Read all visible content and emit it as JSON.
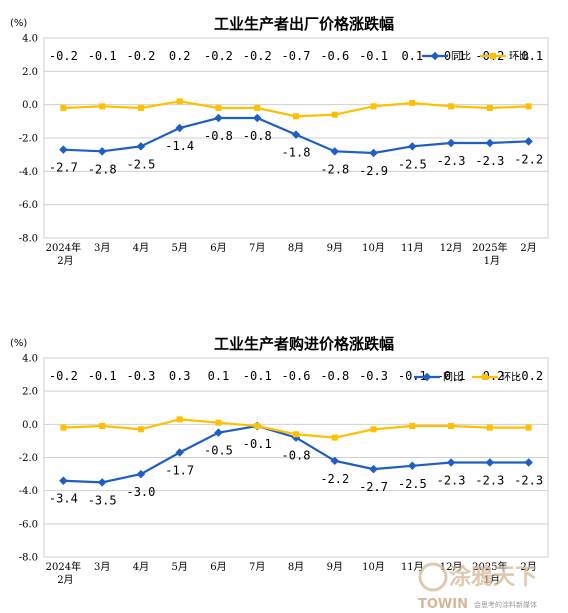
{
  "colors": {
    "yoy": "#1f5fc4",
    "mom": "#ffc000",
    "grid": "#d0d0d0"
  },
  "watermark": {
    "brand": "涂鴉天下",
    "sub": "TOWIN",
    "tag": "会思考的涂料新媒体"
  },
  "chart_data": [
    {
      "type": "line",
      "title": "工业生产者出厂价格涨跌幅",
      "ylabel": "(%)",
      "ylim": [
        -8.0,
        4.0
      ],
      "yticks": [
        "4.0",
        "2.0",
        "0.0",
        "-2.0",
        "-4.0",
        "-6.0",
        "-8.0"
      ],
      "categories": [
        [
          "2024年",
          "2月"
        ],
        [
          "3月"
        ],
        [
          "4月"
        ],
        [
          "5月"
        ],
        [
          "6月"
        ],
        [
          "7月"
        ],
        [
          "8月"
        ],
        [
          "9月"
        ],
        [
          "10月"
        ],
        [
          "11月"
        ],
        [
          "12月"
        ],
        [
          "2025年",
          "1月"
        ],
        [
          "2月"
        ]
      ],
      "legend_position": "top-right",
      "series": [
        {
          "name": "同比",
          "values": [
            -2.7,
            -2.8,
            -2.5,
            -1.4,
            -0.8,
            -0.8,
            -1.8,
            -2.8,
            -2.9,
            -2.5,
            -2.3,
            -2.3,
            -2.2
          ]
        },
        {
          "name": "环比",
          "values": [
            -0.2,
            -0.1,
            -0.2,
            0.2,
            -0.2,
            -0.2,
            -0.7,
            -0.6,
            -0.1,
            0.1,
            -0.1,
            -0.2,
            -0.1
          ]
        }
      ]
    },
    {
      "type": "line",
      "title": "工业生产者购进价格涨跌幅",
      "ylabel": "(%)",
      "ylim": [
        -8.0,
        4.0
      ],
      "yticks": [
        "4.0",
        "2.0",
        "0.0",
        "-2.0",
        "-4.0",
        "-6.0",
        "-8.0"
      ],
      "categories": [
        [
          "2024年",
          "2月"
        ],
        [
          "3月"
        ],
        [
          "4月"
        ],
        [
          "5月"
        ],
        [
          "6月"
        ],
        [
          "7月"
        ],
        [
          "8月"
        ],
        [
          "9月"
        ],
        [
          "10月"
        ],
        [
          "11月"
        ],
        [
          "12月"
        ],
        [
          "2025年",
          "1月"
        ],
        [
          "2月"
        ]
      ],
      "legend_position": "top-right",
      "series": [
        {
          "name": "同比",
          "values": [
            -3.4,
            -3.5,
            -3.0,
            -1.7,
            -0.5,
            -0.1,
            -0.8,
            -2.2,
            -2.7,
            -2.5,
            -2.3,
            -2.3,
            -2.3
          ]
        },
        {
          "name": "环比",
          "values": [
            -0.2,
            -0.1,
            -0.3,
            0.3,
            0.1,
            -0.1,
            -0.6,
            -0.8,
            -0.3,
            -0.1,
            -0.1,
            -0.2,
            -0.2
          ]
        }
      ]
    }
  ]
}
